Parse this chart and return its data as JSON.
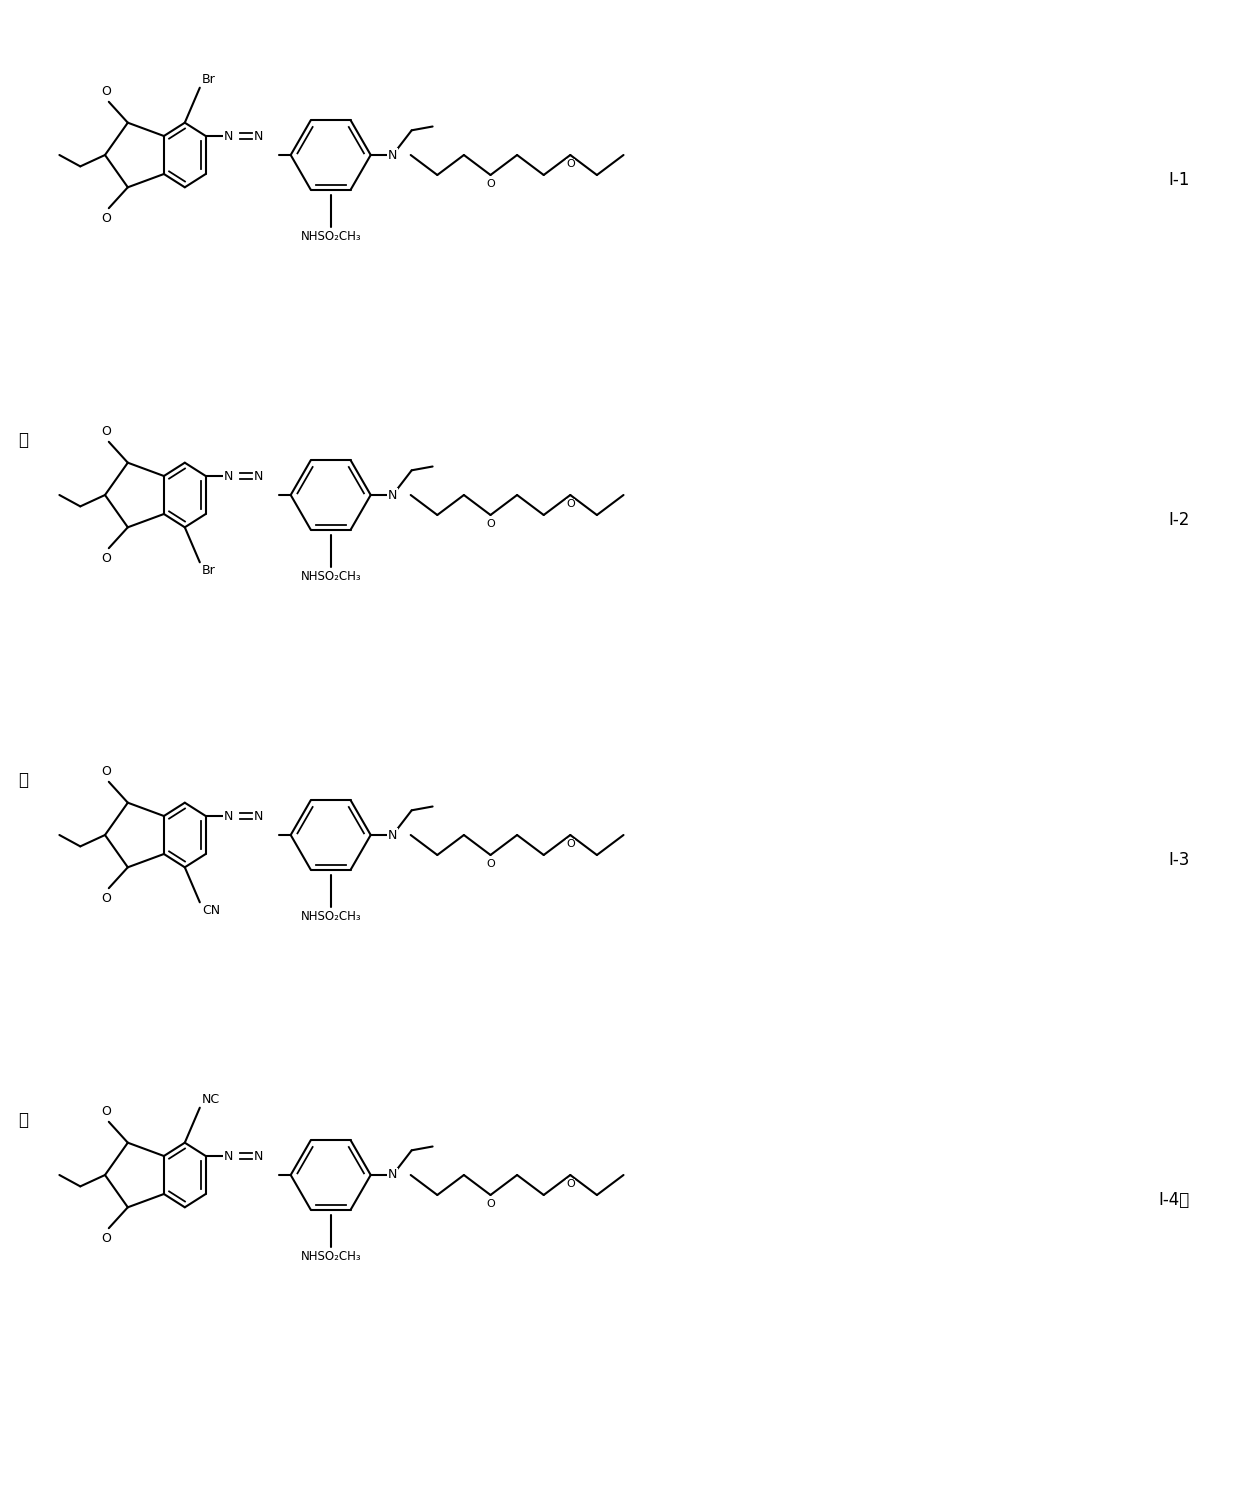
{
  "background_color": "#ffffff",
  "line_width": 1.5,
  "font_size": 9,
  "font_size_id": 12,
  "compounds": [
    {
      "id": "I-1",
      "sub_left": "Br",
      "sub_left_pos": "top",
      "or_label": false,
      "y": 13.5
    },
    {
      "id": "I-2",
      "sub_left": "Br",
      "sub_left_pos": "bottom",
      "or_label": true,
      "y": 10.1
    },
    {
      "id": "I-3",
      "sub_left": "CN",
      "sub_left_pos": "bottom",
      "or_label": true,
      "y": 6.7
    },
    {
      "id": "I-4",
      "sub_left": "NC",
      "sub_left_pos": "top",
      "or_label": true,
      "y": 3.3
    }
  ]
}
